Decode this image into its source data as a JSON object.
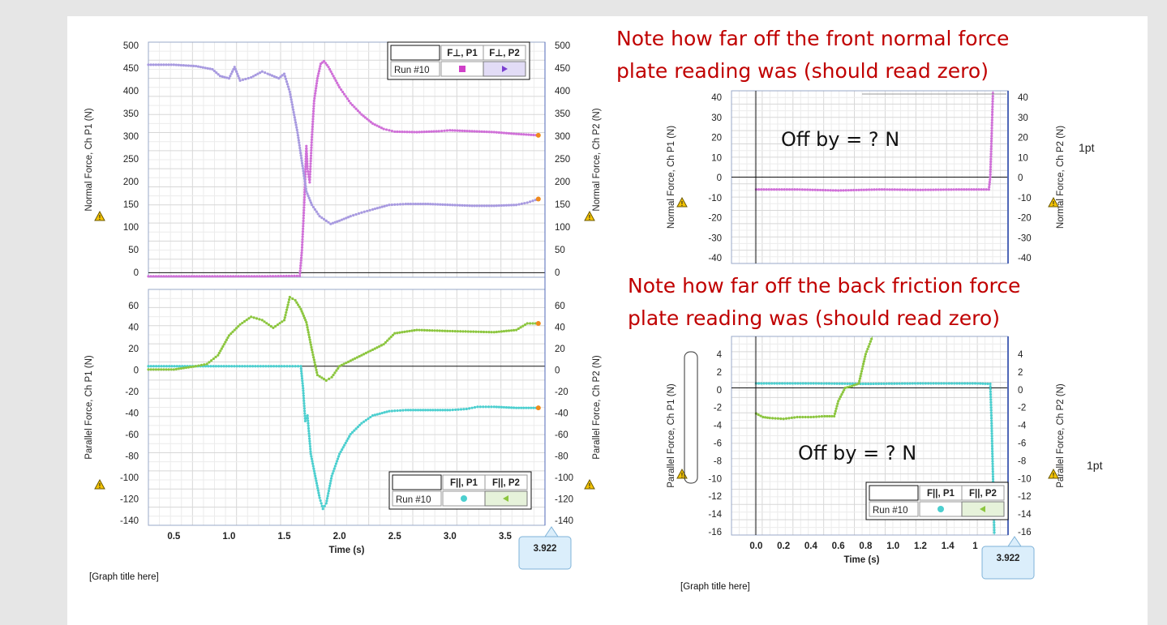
{
  "notes": {
    "normal_line1": "Note how far off the front normal force",
    "normal_line2": "plate reading was (should read zero)",
    "friction_line1": "Note how far off the back friction force",
    "friction_line2": "plate reading was (should read zero)",
    "off_by_normal": "Off by = ? N",
    "off_by_friction": "Off by = ? N",
    "points_normal": "1pt",
    "points_friction": "1pt"
  },
  "graph_titles": {
    "left": "[Graph title here]",
    "right": "[Graph title here]"
  },
  "time_label": "Time (s)",
  "cursor_value": "3.922",
  "run_label": "Run #10",
  "colors": {
    "p1_normal": "#d070d8",
    "p2_normal": "#a89ae0",
    "p1_parallel": "#4ccfcf",
    "p2_parallel": "#8cc63f",
    "highlight": "#f08a1c",
    "warning": "#f5c400"
  },
  "chart_data": [
    {
      "type": "line",
      "panel": "left-top",
      "ylabel_left": "Normal Force, Ch P1 (N)",
      "ylabel_right": "Normal Force, Ch P2 (N)",
      "ylim": [
        -10,
        510
      ],
      "yticks": [
        "500",
        "450",
        "400",
        "350",
        "300",
        "250",
        "200",
        "150",
        "100",
        "50",
        "0"
      ],
      "xlim": [
        0.27,
        3.86
      ],
      "legend": [
        "F⊥, P1",
        "F⊥, P2"
      ],
      "series": [
        {
          "name": "F⊥, P1",
          "color": "#d070d8",
          "points": [
            [
              0.27,
              -8
            ],
            [
              0.8,
              -8
            ],
            [
              1.3,
              -8
            ],
            [
              1.64,
              -7
            ],
            [
              1.66,
              50
            ],
            [
              1.68,
              150
            ],
            [
              1.7,
              280
            ],
            [
              1.71,
              230
            ],
            [
              1.73,
              200
            ],
            [
              1.75,
              300
            ],
            [
              1.77,
              380
            ],
            [
              1.8,
              430
            ],
            [
              1.83,
              462
            ],
            [
              1.86,
              468
            ],
            [
              1.9,
              455
            ],
            [
              2.0,
              410
            ],
            [
              2.1,
              375
            ],
            [
              2.2,
              350
            ],
            [
              2.3,
              330
            ],
            [
              2.4,
              318
            ],
            [
              2.5,
              312
            ],
            [
              2.7,
              311
            ],
            [
              2.9,
              313
            ],
            [
              3.0,
              315
            ],
            [
              3.2,
              313
            ],
            [
              3.4,
              311
            ],
            [
              3.6,
              307
            ],
            [
              3.8,
              304
            ]
          ]
        },
        {
          "name": "F⊥, P2",
          "color": "#a89ae0",
          "points": [
            [
              0.27,
              460
            ],
            [
              0.5,
              460
            ],
            [
              0.7,
              457
            ],
            [
              0.85,
              450
            ],
            [
              0.92,
              435
            ],
            [
              1.0,
              430
            ],
            [
              1.05,
              455
            ],
            [
              1.1,
              425
            ],
            [
              1.2,
              432
            ],
            [
              1.3,
              445
            ],
            [
              1.35,
              440
            ],
            [
              1.45,
              430
            ],
            [
              1.5,
              440
            ],
            [
              1.55,
              400
            ],
            [
              1.62,
              310
            ],
            [
              1.7,
              180
            ],
            [
              1.75,
              150
            ],
            [
              1.82,
              125
            ],
            [
              1.92,
              108
            ],
            [
              2.0,
              115
            ],
            [
              2.1,
              125
            ],
            [
              2.2,
              133
            ],
            [
              2.3,
              140
            ],
            [
              2.45,
              150
            ],
            [
              2.6,
              152
            ],
            [
              2.8,
              152
            ],
            [
              3.0,
              150
            ],
            [
              3.2,
              148
            ],
            [
              3.4,
              148
            ],
            [
              3.6,
              150
            ],
            [
              3.7,
              155
            ],
            [
              3.8,
              163
            ]
          ]
        }
      ]
    },
    {
      "type": "line",
      "panel": "left-bottom",
      "ylabel_left": "Parallel Force, Ch P1 (N)",
      "ylabel_right": "Parallel Force, Ch P2 (N)",
      "ylim": [
        -145,
        70
      ],
      "yticks": [
        "60",
        "40",
        "20",
        "0",
        "-20",
        "-40",
        "-60",
        "-80",
        "-100",
        "-120",
        "-140"
      ],
      "xlim": [
        0.27,
        3.86
      ],
      "xticks": [
        "0.5",
        "1.0",
        "1.5",
        "2.0",
        "2.5",
        "3.0",
        "3.5"
      ],
      "legend": [
        "F||, P1",
        "F||, P2"
      ],
      "series": [
        {
          "name": "F||, P1",
          "color": "#4ccfcf",
          "points": [
            [
              0.27,
              0
            ],
            [
              1.0,
              0
            ],
            [
              1.5,
              0
            ],
            [
              1.65,
              0
            ],
            [
              1.67,
              -20
            ],
            [
              1.69,
              -50
            ],
            [
              1.71,
              -45
            ],
            [
              1.74,
              -80
            ],
            [
              1.78,
              -100
            ],
            [
              1.82,
              -120
            ],
            [
              1.85,
              -130
            ],
            [
              1.88,
              -125
            ],
            [
              1.93,
              -100
            ],
            [
              2.0,
              -80
            ],
            [
              2.1,
              -62
            ],
            [
              2.2,
              -52
            ],
            [
              2.3,
              -45
            ],
            [
              2.45,
              -41
            ],
            [
              2.6,
              -40
            ],
            [
              2.8,
              -40
            ],
            [
              3.0,
              -40
            ],
            [
              3.15,
              -39
            ],
            [
              3.25,
              -37
            ],
            [
              3.4,
              -37
            ],
            [
              3.6,
              -38
            ],
            [
              3.8,
              -38
            ]
          ]
        },
        {
          "name": "F||, P2",
          "color": "#8cc63f",
          "points": [
            [
              0.27,
              -3
            ],
            [
              0.5,
              -3
            ],
            [
              0.7,
              0
            ],
            [
              0.8,
              2
            ],
            [
              0.9,
              10
            ],
            [
              1.0,
              28
            ],
            [
              1.1,
              38
            ],
            [
              1.2,
              45
            ],
            [
              1.3,
              42
            ],
            [
              1.4,
              35
            ],
            [
              1.5,
              42
            ],
            [
              1.55,
              63
            ],
            [
              1.6,
              60
            ],
            [
              1.65,
              52
            ],
            [
              1.7,
              40
            ],
            [
              1.75,
              15
            ],
            [
              1.8,
              -8
            ],
            [
              1.88,
              -13
            ],
            [
              1.93,
              -10
            ],
            [
              2.0,
              0
            ],
            [
              2.2,
              10
            ],
            [
              2.4,
              20
            ],
            [
              2.5,
              30
            ],
            [
              2.7,
              33
            ],
            [
              3.0,
              32
            ],
            [
              3.4,
              31
            ],
            [
              3.6,
              33
            ],
            [
              3.7,
              39
            ],
            [
              3.8,
              39
            ]
          ]
        }
      ]
    },
    {
      "type": "line",
      "panel": "right-top",
      "ylabel_left": "Normal Force, Ch P1 (N)",
      "ylabel_right": "Normal Force, Ch P2 (N)",
      "ylim": [
        -42,
        42
      ],
      "yticks": [
        "40",
        "30",
        "20",
        "10",
        "0",
        "-10",
        "-20",
        "-30",
        "-40"
      ],
      "xlim": [
        -0.18,
        1.84
      ],
      "series": [
        {
          "name": "F⊥, P1",
          "color": "#d070d8",
          "points": [
            [
              0.0,
              -6
            ],
            [
              0.3,
              -6
            ],
            [
              0.6,
              -6.5
            ],
            [
              0.9,
              -6
            ],
            [
              1.2,
              -6.2
            ],
            [
              1.5,
              -6
            ],
            [
              1.7,
              -6
            ],
            [
              1.71,
              0
            ],
            [
              1.72,
              20
            ],
            [
              1.73,
              42
            ]
          ]
        }
      ]
    },
    {
      "type": "line",
      "panel": "right-bottom",
      "ylabel_left": "Parallel Force, Ch P1 (N)",
      "ylabel_right": "Parallel Force, Ch P2 (N)",
      "ylim": [
        -16.6,
        5.8
      ],
      "yticks": [
        "4",
        "2",
        "0",
        "-2",
        "-4",
        "-6",
        "-8",
        "-10",
        "-12",
        "-14",
        "-16"
      ],
      "xlim": [
        -0.18,
        1.84
      ],
      "xticks": [
        "0.0",
        "0.2",
        "0.4",
        "0.6",
        "0.8",
        "1.0",
        "1.2",
        "1.4",
        "1"
      ],
      "legend": [
        "F||, P1",
        "F||, P2"
      ],
      "series": [
        {
          "name": "F||, P1",
          "color": "#4ccfcf",
          "points": [
            [
              0.0,
              0.5
            ],
            [
              0.4,
              0.5
            ],
            [
              0.8,
              0.45
            ],
            [
              1.2,
              0.5
            ],
            [
              1.6,
              0.5
            ],
            [
              1.71,
              0.45
            ],
            [
              1.72,
              -4
            ],
            [
              1.73,
              -10
            ],
            [
              1.74,
              -16.6
            ]
          ]
        },
        {
          "name": "F||, P2",
          "color": "#8cc63f",
          "points": [
            [
              0.0,
              -2.9
            ],
            [
              0.05,
              -3.3
            ],
            [
              0.1,
              -3.4
            ],
            [
              0.2,
              -3.5
            ],
            [
              0.3,
              -3.3
            ],
            [
              0.4,
              -3.3
            ],
            [
              0.5,
              -3.2
            ],
            [
              0.57,
              -3.2
            ],
            [
              0.6,
              -1.5
            ],
            [
              0.65,
              0
            ],
            [
              0.7,
              0.2
            ],
            [
              0.75,
              0.5
            ],
            [
              0.8,
              3.8
            ],
            [
              0.85,
              5.8
            ]
          ]
        }
      ]
    }
  ]
}
